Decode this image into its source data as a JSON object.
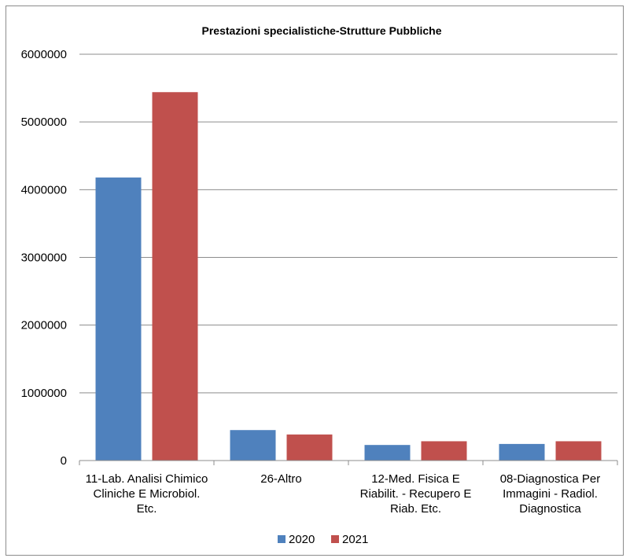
{
  "chart_data": {
    "type": "bar",
    "title": "Prestazioni specialistiche-Strutture  Pubbliche",
    "xlabel": "",
    "ylabel": "",
    "categories": [
      [
        "11-Lab. Analisi Chimico",
        "Cliniche E Microbiol.",
        "Etc."
      ],
      [
        "26-Altro"
      ],
      [
        "12-Med. Fisica E",
        "Riabilit. - Recupero E",
        "Riab. Etc."
      ],
      [
        "08-Diagnostica Per",
        "Immagini - Radiol.",
        "Diagnostica"
      ]
    ],
    "series": [
      {
        "name": "2020",
        "color": "#4f81bd",
        "values": [
          4180000,
          450000,
          230000,
          245000
        ]
      },
      {
        "name": "2021",
        "color": "#c0504d",
        "values": [
          5440000,
          385000,
          285000,
          285000
        ]
      }
    ],
    "ylim": [
      0,
      6000000
    ],
    "yticks": [
      0,
      1000000,
      2000000,
      3000000,
      4000000,
      5000000,
      6000000
    ],
    "ytick_labels": [
      "0",
      "1000000",
      "2000000",
      "3000000",
      "4000000",
      "5000000",
      "6000000"
    ],
    "grid": true,
    "legend_position": "bottom"
  }
}
